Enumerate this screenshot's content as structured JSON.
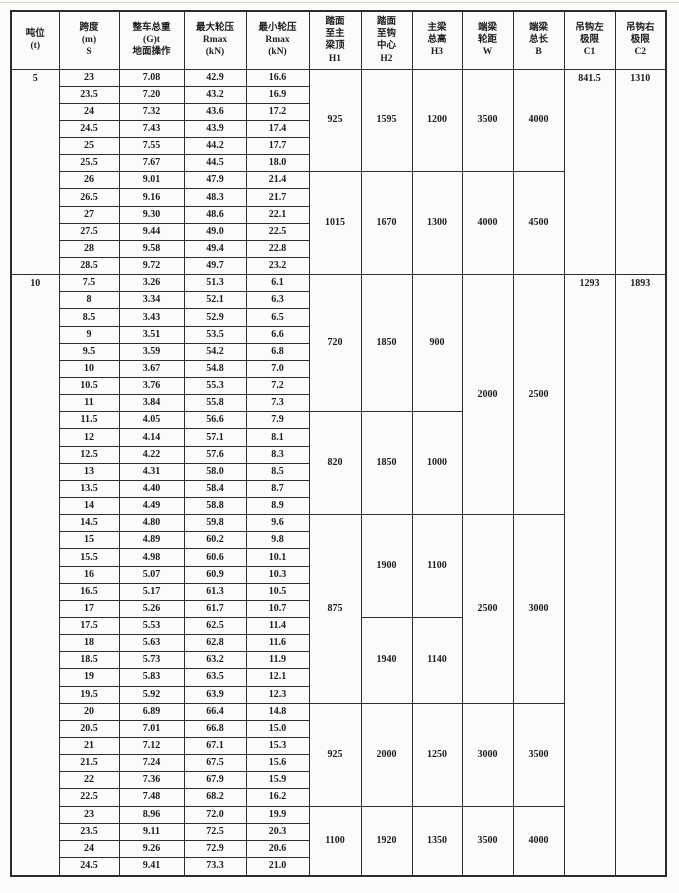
{
  "table": {
    "headers": [
      "吨位\n(t)",
      "跨度\n(m)\nS",
      "整车总重\n(G)t\n地面操作",
      "最大轮压\nRmax\n(kN)",
      "最小轮压\nRmax\n(kN)",
      "踏面\n至主\n梁顶\nH1",
      "踏面\n至钩\n中心\nH2",
      "主梁\n总高\nH3",
      "端梁\n轮距\nW",
      "端梁\n总长\nB",
      "吊钩左\n极限\nC1",
      "吊钩右\n极限\nC2"
    ],
    "sections": [
      {
        "tonnage": "5",
        "rows": [
          [
            "23",
            "7.08",
            "42.9",
            "16.6"
          ],
          [
            "23.5",
            "7.20",
            "43.2",
            "16.9"
          ],
          [
            "24",
            "7.32",
            "43.6",
            "17.2"
          ],
          [
            "24.5",
            "7.43",
            "43.9",
            "17.4"
          ],
          [
            "25",
            "7.55",
            "44.2",
            "17.7"
          ],
          [
            "25.5",
            "7.67",
            "44.5",
            "18.0"
          ],
          [
            "26",
            "9.01",
            "47.9",
            "21.4"
          ],
          [
            "26.5",
            "9.16",
            "48.3",
            "21.7"
          ],
          [
            "27",
            "9.30",
            "48.6",
            "22.1"
          ],
          [
            "27.5",
            "9.44",
            "49.0",
            "22.5"
          ],
          [
            "28",
            "9.58",
            "49.4",
            "22.8"
          ],
          [
            "28.5",
            "9.72",
            "49.7",
            "23.2"
          ]
        ],
        "merged": {
          "h1": [
            {
              "start": 0,
              "len": 6,
              "value": "925"
            },
            {
              "start": 6,
              "len": 6,
              "value": "1015"
            }
          ],
          "h2": [
            {
              "start": 0,
              "len": 6,
              "value": "1595"
            },
            {
              "start": 6,
              "len": 6,
              "value": "1670"
            }
          ],
          "h3": [
            {
              "start": 0,
              "len": 6,
              "value": "1200"
            },
            {
              "start": 6,
              "len": 6,
              "value": "1300"
            }
          ],
          "w": [
            {
              "start": 0,
              "len": 6,
              "value": "3500"
            },
            {
              "start": 6,
              "len": 6,
              "value": "4000"
            }
          ],
          "b": [
            {
              "start": 0,
              "len": 6,
              "value": "4000"
            },
            {
              "start": 6,
              "len": 6,
              "value": "4500"
            }
          ],
          "c1": [
            {
              "start": 0,
              "len": 12,
              "value": "841.5",
              "top": true
            }
          ],
          "c2": [
            {
              "start": 0,
              "len": 12,
              "value": "1310",
              "top": true
            }
          ]
        }
      },
      {
        "tonnage": "10",
        "rows": [
          [
            "7.5",
            "3.26",
            "51.3",
            "6.1"
          ],
          [
            "8",
            "3.34",
            "52.1",
            "6.3"
          ],
          [
            "8.5",
            "3.43",
            "52.9",
            "6.5"
          ],
          [
            "9",
            "3.51",
            "53.5",
            "6.6"
          ],
          [
            "9.5",
            "3.59",
            "54.2",
            "6.8"
          ],
          [
            "10",
            "3.67",
            "54.8",
            "7.0"
          ],
          [
            "10.5",
            "3.76",
            "55.3",
            "7.2"
          ],
          [
            "11",
            "3.84",
            "55.8",
            "7.3"
          ],
          [
            "11.5",
            "4.05",
            "56.6",
            "7.9"
          ],
          [
            "12",
            "4.14",
            "57.1",
            "8.1"
          ],
          [
            "12.5",
            "4.22",
            "57.6",
            "8.3"
          ],
          [
            "13",
            "4.31",
            "58.0",
            "8.5"
          ],
          [
            "13.5",
            "4.40",
            "58.4",
            "8.7"
          ],
          [
            "14",
            "4.49",
            "58.8",
            "8.9"
          ],
          [
            "14.5",
            "4.80",
            "59.8",
            "9.6"
          ],
          [
            "15",
            "4.89",
            "60.2",
            "9.8"
          ],
          [
            "15.5",
            "4.98",
            "60.6",
            "10.1"
          ],
          [
            "16",
            "5.07",
            "60.9",
            "10.3"
          ],
          [
            "16.5",
            "5.17",
            "61.3",
            "10.5"
          ],
          [
            "17",
            "5.26",
            "61.7",
            "10.7"
          ],
          [
            "17.5",
            "5.53",
            "62.5",
            "11.4"
          ],
          [
            "18",
            "5.63",
            "62.8",
            "11.6"
          ],
          [
            "18.5",
            "5.73",
            "63.2",
            "11.9"
          ],
          [
            "19",
            "5.83",
            "63.5",
            "12.1"
          ],
          [
            "19.5",
            "5.92",
            "63.9",
            "12.3"
          ],
          [
            "20",
            "6.89",
            "66.4",
            "14.8"
          ],
          [
            "20.5",
            "7.01",
            "66.8",
            "15.0"
          ],
          [
            "21",
            "7.12",
            "67.1",
            "15.3"
          ],
          [
            "21.5",
            "7.24",
            "67.5",
            "15.6"
          ],
          [
            "22",
            "7.36",
            "67.9",
            "15.9"
          ],
          [
            "22.5",
            "7.48",
            "68.2",
            "16.2"
          ],
          [
            "23",
            "8.96",
            "72.0",
            "19.9"
          ],
          [
            "23.5",
            "9.11",
            "72.5",
            "20.3"
          ],
          [
            "24",
            "9.26",
            "72.9",
            "20.6"
          ],
          [
            "24.5",
            "9.41",
            "73.3",
            "21.0"
          ]
        ],
        "merged": {
          "h1": [
            {
              "start": 0,
              "len": 8,
              "value": "720"
            },
            {
              "start": 8,
              "len": 6,
              "value": "820"
            },
            {
              "start": 14,
              "len": 11,
              "value": "875"
            },
            {
              "start": 25,
              "len": 6,
              "value": "925"
            },
            {
              "start": 31,
              "len": 4,
              "value": "1100"
            }
          ],
          "h2": [
            {
              "start": 0,
              "len": 8,
              "value": "1850"
            },
            {
              "start": 8,
              "len": 6,
              "value": "1850"
            },
            {
              "start": 14,
              "len": 6,
              "value": "1900"
            },
            {
              "start": 20,
              "len": 5,
              "value": "1940"
            },
            {
              "start": 25,
              "len": 6,
              "value": "2000"
            },
            {
              "start": 31,
              "len": 4,
              "value": "1920"
            }
          ],
          "h3": [
            {
              "start": 0,
              "len": 8,
              "value": "900"
            },
            {
              "start": 8,
              "len": 6,
              "value": "1000"
            },
            {
              "start": 14,
              "len": 6,
              "value": "1100"
            },
            {
              "start": 20,
              "len": 5,
              "value": "1140"
            },
            {
              "start": 25,
              "len": 6,
              "value": "1250"
            },
            {
              "start": 31,
              "len": 4,
              "value": "1350"
            }
          ],
          "w": [
            {
              "start": 0,
              "len": 14,
              "value": "2000"
            },
            {
              "start": 14,
              "len": 11,
              "value": "2500"
            },
            {
              "start": 25,
              "len": 6,
              "value": "3000"
            },
            {
              "start": 31,
              "len": 4,
              "value": "3500"
            }
          ],
          "b": [
            {
              "start": 0,
              "len": 14,
              "value": "2500"
            },
            {
              "start": 14,
              "len": 11,
              "value": "3000"
            },
            {
              "start": 25,
              "len": 6,
              "value": "3500"
            },
            {
              "start": 31,
              "len": 4,
              "value": "4000"
            }
          ],
          "c1": [
            {
              "start": 0,
              "len": 35,
              "value": "1293",
              "top": true
            }
          ],
          "c2": [
            {
              "start": 0,
              "len": 35,
              "value": "1893",
              "top": true
            }
          ]
        }
      }
    ],
    "colors": {
      "border": "#2e2e2e",
      "text": "#1c1c1c",
      "background": "#fbfbf9"
    }
  }
}
